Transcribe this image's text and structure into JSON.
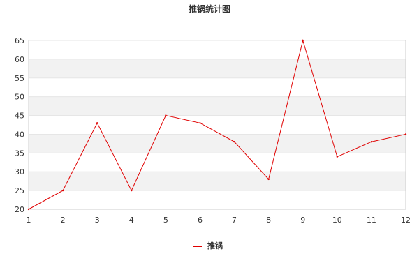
{
  "chart_data": {
    "type": "line",
    "title": "推锅统计图",
    "xlabel": "",
    "ylabel": "",
    "x": [
      1,
      2,
      3,
      4,
      5,
      6,
      7,
      8,
      9,
      10,
      11,
      12
    ],
    "xlim": [
      1,
      12
    ],
    "ylim": [
      20,
      65
    ],
    "yticks": [
      20,
      25,
      30,
      35,
      40,
      45,
      50,
      55,
      60,
      65
    ],
    "grid": true,
    "banded_background": true,
    "legend_position": "bottom-center",
    "series": [
      {
        "name": "推锅",
        "color": "#e00000",
        "values": [
          20,
          25,
          43,
          25,
          45,
          43,
          38,
          28,
          65,
          34,
          38,
          40
        ]
      }
    ]
  },
  "colors": {
    "band": "#f2f2f2",
    "grid": "#e6e6e6",
    "axis": "#cccccc",
    "text": "#333333"
  }
}
